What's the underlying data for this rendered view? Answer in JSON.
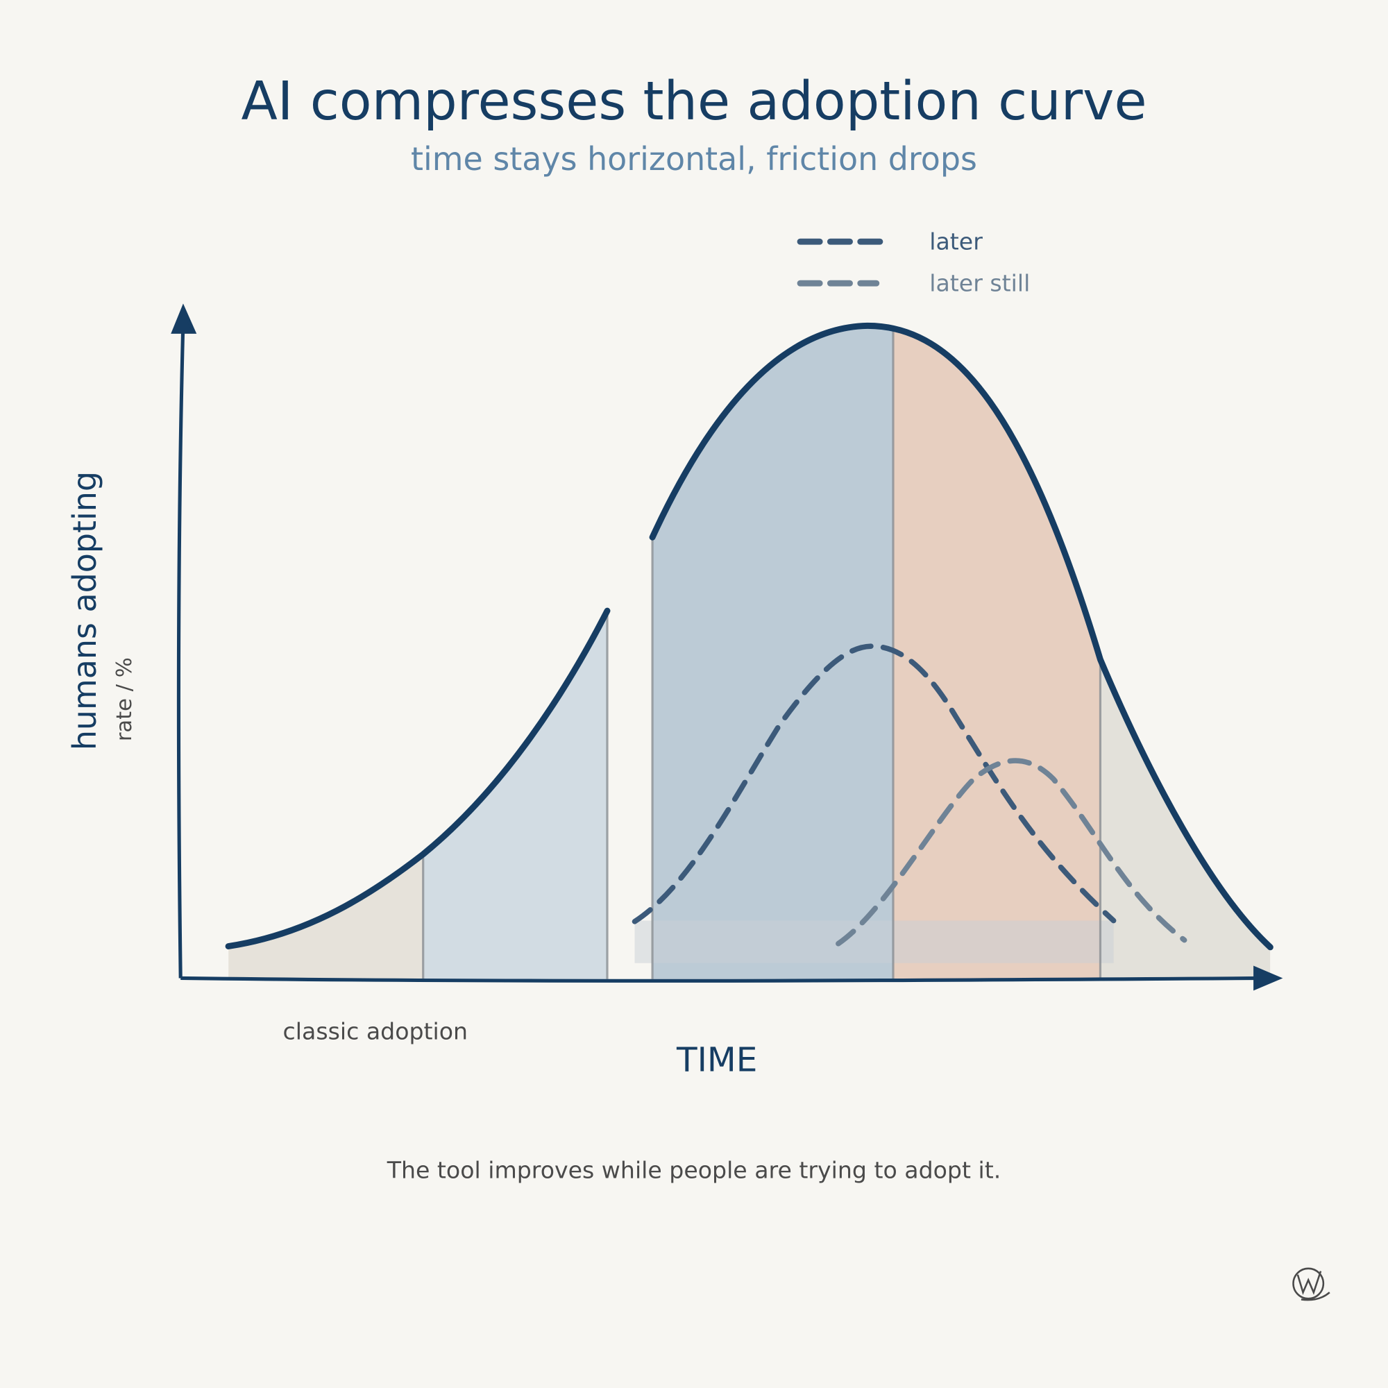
{
  "header": {
    "title": "AI compresses the adoption curve",
    "subtitle": "time stays horizontal, friction drops"
  },
  "legend": {
    "items": [
      {
        "label": "later"
      },
      {
        "label": "later still"
      }
    ]
  },
  "axes": {
    "y": {
      "label": "humans adopting",
      "sublabel": "rate / %"
    },
    "x": {
      "label": "TIME"
    }
  },
  "annotations": [
    "classic adoption"
  ],
  "caption": "The tool improves while people are trying to adopt it."
}
